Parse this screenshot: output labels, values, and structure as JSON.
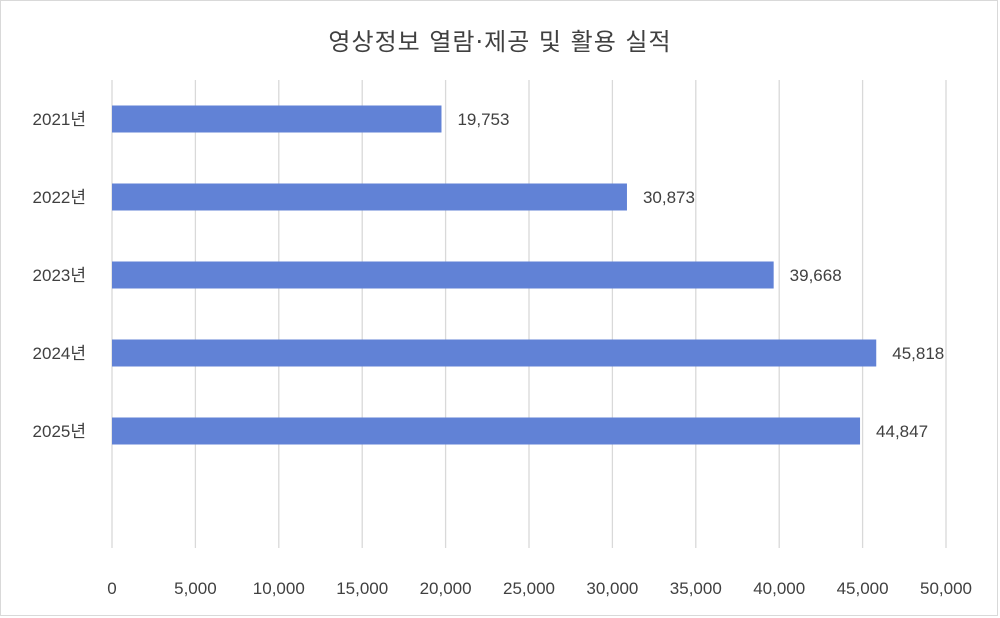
{
  "chart_data": {
    "type": "bar",
    "orientation": "horizontal",
    "title": "영상정보 열람·제공 및 활용 실적",
    "categories": [
      "2021년",
      "2022년",
      "2023년",
      "2024년",
      "2025년"
    ],
    "values": [
      19753,
      30873,
      39668,
      45818,
      44847
    ],
    "value_labels": [
      "19,753",
      "30,873",
      "39,668",
      "45,818",
      "44,847"
    ],
    "xlim": [
      0,
      50000
    ],
    "x_ticks": [
      0,
      5000,
      10000,
      15000,
      20000,
      25000,
      30000,
      35000,
      40000,
      45000,
      50000
    ],
    "x_tick_labels": [
      "0",
      "5,000",
      "10,000",
      "15,000",
      "20,000",
      "25,000",
      "30,000",
      "35,000",
      "40,000",
      "45,000",
      "50,000"
    ],
    "xlabel": "",
    "ylabel": "",
    "grid": "vertical",
    "legend": "none",
    "bar_color": "#6182d6",
    "grid_color": "#d9d9d9",
    "text_color": "#404040"
  }
}
